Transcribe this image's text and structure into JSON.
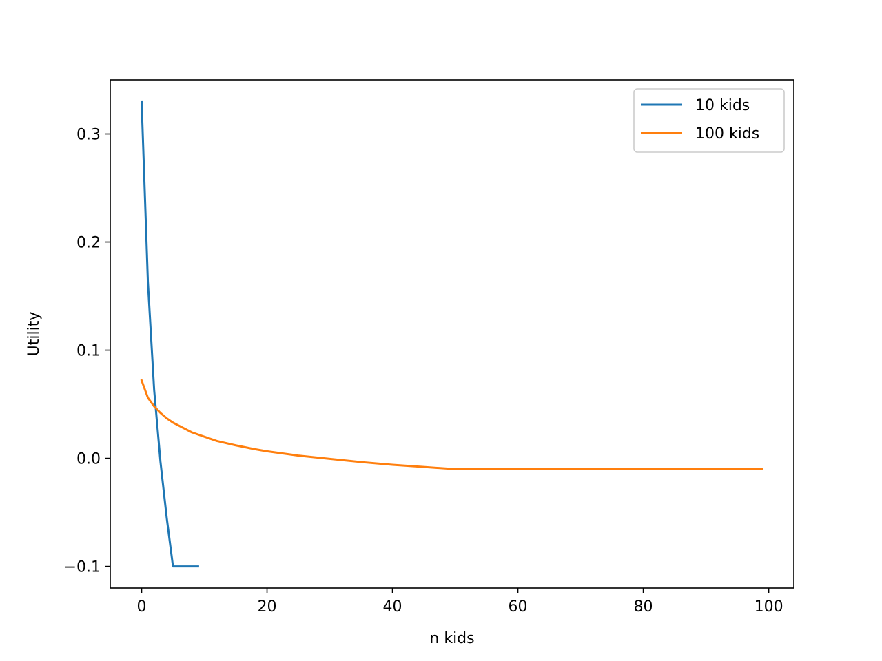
{
  "chart_data": {
    "type": "line",
    "title": "",
    "xlabel": "n kids",
    "ylabel": "Utility",
    "xlim": [
      -5,
      104
    ],
    "ylim": [
      -0.12,
      0.35
    ],
    "xticks": [
      0,
      20,
      40,
      60,
      80,
      100
    ],
    "xtick_labels": [
      "0",
      "20",
      "40",
      "60",
      "80",
      "100"
    ],
    "yticks": [
      -0.1,
      0.0,
      0.1,
      0.2,
      0.3
    ],
    "ytick_labels": [
      "−0.1",
      "0.0",
      "0.1",
      "0.2",
      "0.3"
    ],
    "grid": false,
    "legend_position": "top-right",
    "series": [
      {
        "name": "10 kids",
        "color": "#1f77b4",
        "x": [
          0,
          1,
          2,
          3,
          4,
          5,
          6,
          7,
          8,
          9
        ],
        "y": [
          0.33,
          0.163,
          0.063,
          -0.003,
          -0.055,
          -0.1,
          -0.1,
          -0.1,
          -0.1,
          -0.1
        ]
      },
      {
        "name": "100 kids",
        "color": "#ff7f0e",
        "x": [
          0,
          1,
          2,
          3,
          4,
          5,
          6,
          8,
          10,
          12,
          15,
          18,
          20,
          25,
          30,
          35,
          40,
          45,
          50,
          60,
          70,
          80,
          90,
          99
        ],
        "y": [
          0.072,
          0.056,
          0.048,
          0.042,
          0.037,
          0.033,
          0.03,
          0.024,
          0.02,
          0.016,
          0.012,
          0.0085,
          0.0065,
          0.0025,
          -0.0005,
          -0.0035,
          -0.006,
          -0.008,
          -0.01,
          -0.01,
          -0.01,
          -0.01,
          -0.01,
          -0.01
        ]
      }
    ]
  }
}
